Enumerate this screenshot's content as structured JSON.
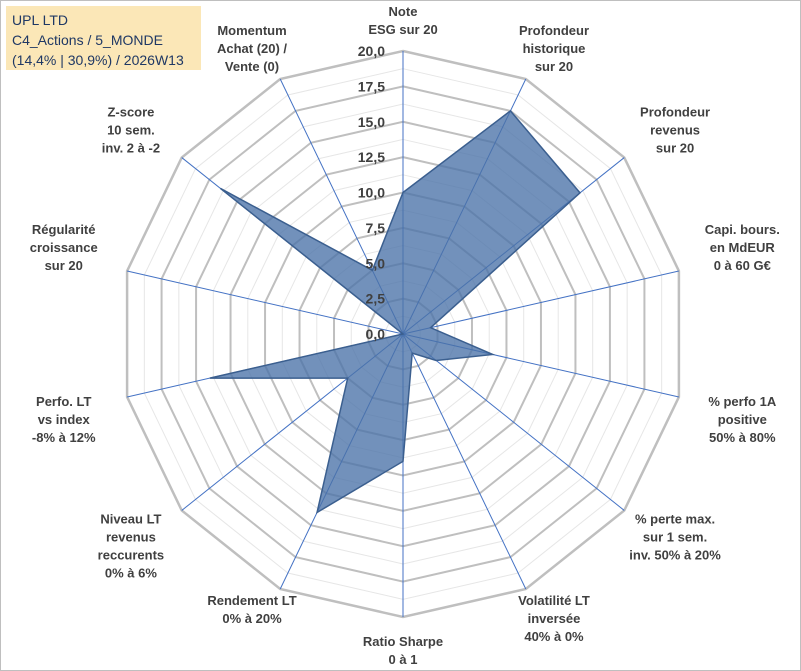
{
  "header": {
    "line1": "UPL LTD",
    "line2": "C4_Actions / 5_MONDE",
    "line3": "(14,4% | 30,9%) / 2026W13"
  },
  "chart_data": {
    "type": "radar",
    "title": "UPL LTD",
    "range": [
      0,
      20
    ],
    "ticks": [
      "0,0",
      "2,5",
      "5,0",
      "7,5",
      "10,0",
      "12,5",
      "15,0",
      "17,5",
      "20,0"
    ],
    "tick_values": [
      0,
      2.5,
      5,
      7.5,
      10,
      12.5,
      15,
      17.5,
      20
    ],
    "axes": [
      [
        "Note",
        "ESG sur 20"
      ],
      [
        "Profondeur",
        "historique",
        "sur 20"
      ],
      [
        "Profondeur",
        "revenus",
        "sur 20"
      ],
      [
        "Capi. bours.",
        "en MdEUR",
        "0 à 60 G€"
      ],
      [
        "% perfo 1A",
        "positive",
        "50% à 80%"
      ],
      [
        "% perte max.",
        "sur 1 sem.",
        "inv. 50% à 20%"
      ],
      [
        "Volatilité LT",
        "inversée",
        "40% à 0%"
      ],
      [
        "Ratio Sharpe",
        "0 à 1"
      ],
      [
        "Rendement LT",
        "0% à 20%"
      ],
      [
        "Niveau LT",
        "revenus",
        "reccurents",
        "0% à 6%"
      ],
      [
        "Perfo. LT",
        "vs index",
        "-8% à 12%"
      ],
      [
        "Régularité",
        "croissance",
        "sur 20"
      ],
      [
        "Z-score",
        "10 sem.",
        "inv. 2 à -2"
      ],
      [
        "Momentum",
        "Achat (20) /",
        "Vente (0)"
      ]
    ],
    "series": [
      {
        "name": "UPL LTD",
        "color": "#4a72a8",
        "values": [
          10,
          17.5,
          16,
          2,
          6.5,
          3,
          1.5,
          9,
          14,
          5,
          14,
          0,
          16.5,
          5
        ]
      }
    ]
  }
}
